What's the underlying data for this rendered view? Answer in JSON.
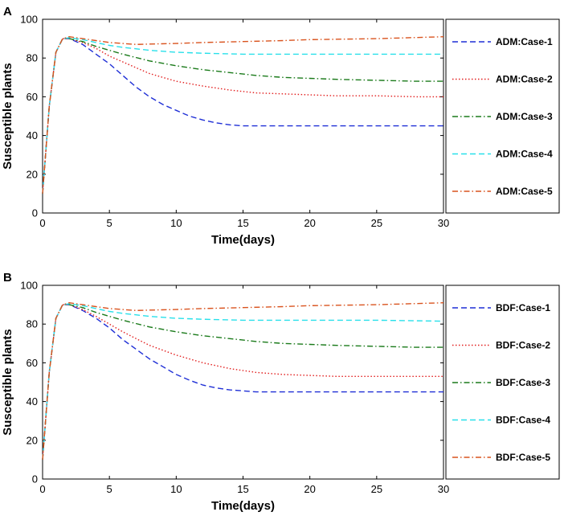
{
  "chart_data": [
    {
      "panel_label": "A",
      "type": "line",
      "xlabel": "Time(days)",
      "ylabel": "Susceptible plants",
      "xlim": [
        0,
        30
      ],
      "ylim": [
        0,
        100
      ],
      "xticks": [
        "0",
        "5",
        "10",
        "15",
        "20",
        "25",
        "30"
      ],
      "yticks": [
        "0",
        "20",
        "40",
        "60",
        "80",
        "100"
      ],
      "legend_position": "right",
      "series": [
        {
          "name": "ADM:Case-1",
          "color": "#1f2fd6",
          "dash": "dashed",
          "x": [
            0,
            0.5,
            1,
            1.5,
            2,
            3,
            4,
            5,
            6,
            7,
            8,
            9,
            10,
            11,
            12,
            13,
            14,
            15,
            16,
            18,
            20,
            22,
            25,
            28,
            30
          ],
          "y": [
            10,
            55,
            83,
            90,
            90,
            87,
            82,
            77,
            71,
            65,
            60,
            56,
            53,
            50,
            48,
            46.5,
            45.5,
            45,
            45,
            45,
            45,
            45,
            45,
            45,
            45
          ]
        },
        {
          "name": "ADM:Case-2",
          "color": "#e21f1f",
          "dash": "dotted",
          "x": [
            0,
            0.5,
            1,
            1.5,
            2,
            3,
            4,
            5,
            6,
            7,
            8,
            10,
            12,
            14,
            16,
            18,
            20,
            22,
            25,
            28,
            30
          ],
          "y": [
            10,
            55,
            83,
            90,
            90,
            88,
            85,
            81,
            78,
            75,
            72,
            68,
            65.5,
            63.5,
            62,
            61.5,
            61,
            60.5,
            60.5,
            60,
            60
          ]
        },
        {
          "name": "ADM:Case-3",
          "color": "#1a7a1a",
          "dash": "dashdot",
          "x": [
            0,
            0.5,
            1,
            1.5,
            2,
            3,
            4,
            5,
            6,
            8,
            10,
            12,
            14,
            16,
            18,
            20,
            22,
            25,
            28,
            30
          ],
          "y": [
            10,
            55,
            83,
            90,
            90,
            88.5,
            86,
            84,
            82,
            78.5,
            76,
            74,
            72.5,
            71,
            70,
            69.5,
            69,
            68.5,
            68,
            68
          ]
        },
        {
          "name": "ADM:Case-4",
          "color": "#28e0ea",
          "dash": "dashed",
          "x": [
            0,
            0.5,
            1,
            1.5,
            2,
            3,
            4,
            5,
            6,
            8,
            10,
            12,
            15,
            18,
            20,
            25,
            30
          ],
          "y": [
            10,
            55,
            83,
            90,
            90.5,
            89.5,
            88,
            86.5,
            85.5,
            84,
            83,
            82.5,
            82,
            82,
            82,
            82,
            82
          ]
        },
        {
          "name": "ADM:Case-5",
          "color": "#d9531e",
          "dash": "dashdot",
          "x": [
            0,
            0.5,
            1,
            1.5,
            2,
            3,
            4,
            5,
            6,
            7,
            8,
            10,
            12,
            15,
            18,
            20,
            25,
            30
          ],
          "y": [
            10,
            55,
            83,
            90,
            91,
            90,
            89,
            88,
            87.5,
            87,
            87.2,
            87.5,
            88,
            88.5,
            89,
            89.5,
            90,
            91
          ]
        }
      ]
    },
    {
      "panel_label": "B",
      "type": "line",
      "xlabel": "Time(days)",
      "ylabel": "Susceptible plants",
      "xlim": [
        0,
        30
      ],
      "ylim": [
        0,
        100
      ],
      "xticks": [
        "0",
        "5",
        "10",
        "15",
        "20",
        "25",
        "30"
      ],
      "yticks": [
        "0",
        "20",
        "40",
        "60",
        "80",
        "100"
      ],
      "legend_position": "right",
      "series": [
        {
          "name": "BDF:Case-1",
          "color": "#1f2fd6",
          "dash": "dashed",
          "x": [
            0,
            0.5,
            1,
            1.5,
            2,
            3,
            4,
            5,
            6,
            7,
            8,
            9,
            10,
            11,
            12,
            13,
            14,
            15,
            16,
            18,
            20,
            22,
            25,
            28,
            30
          ],
          "y": [
            10,
            55,
            83,
            90,
            90,
            87,
            83,
            78,
            72,
            67,
            62,
            58,
            54,
            51,
            48.5,
            47,
            46,
            45.5,
            45,
            45,
            45,
            45,
            45,
            45,
            45
          ]
        },
        {
          "name": "BDF:Case-2",
          "color": "#e21f1f",
          "dash": "dotted",
          "x": [
            0,
            0.5,
            1,
            1.5,
            2,
            3,
            4,
            5,
            6,
            7,
            8,
            10,
            12,
            14,
            16,
            18,
            20,
            22,
            25,
            28,
            30
          ],
          "y": [
            10,
            55,
            83,
            90,
            90,
            87.5,
            84,
            80,
            76,
            72.5,
            69,
            64,
            60,
            57,
            55,
            54,
            53.5,
            53,
            53,
            53,
            53
          ]
        },
        {
          "name": "BDF:Case-3",
          "color": "#1a7a1a",
          "dash": "dashdot",
          "x": [
            0,
            0.5,
            1,
            1.5,
            2,
            3,
            4,
            5,
            6,
            8,
            10,
            12,
            14,
            16,
            18,
            20,
            22,
            25,
            28,
            30
          ],
          "y": [
            10,
            55,
            83,
            90,
            90,
            88.5,
            86,
            84,
            82,
            78.5,
            76,
            74,
            72.5,
            71,
            70,
            69.5,
            69,
            68.5,
            68,
            68
          ]
        },
        {
          "name": "BDF:Case-4",
          "color": "#28e0ea",
          "dash": "dashed",
          "x": [
            0,
            0.5,
            1,
            1.5,
            2,
            3,
            4,
            5,
            6,
            8,
            10,
            12,
            15,
            18,
            20,
            25,
            30
          ],
          "y": [
            10,
            55,
            83,
            90,
            90.5,
            89.5,
            88,
            86.5,
            85.5,
            84,
            83,
            82.5,
            82,
            82,
            82,
            82,
            81.5
          ]
        },
        {
          "name": "BDF:Case-5",
          "color": "#d9531e",
          "dash": "dashdot",
          "x": [
            0,
            0.5,
            1,
            1.5,
            2,
            3,
            4,
            5,
            6,
            7,
            8,
            10,
            12,
            15,
            18,
            20,
            25,
            30
          ],
          "y": [
            10,
            55,
            83,
            90,
            91,
            90,
            89,
            88,
            87.5,
            87,
            87.2,
            87.5,
            88,
            88.5,
            89,
            89.5,
            90,
            91
          ]
        }
      ]
    }
  ]
}
